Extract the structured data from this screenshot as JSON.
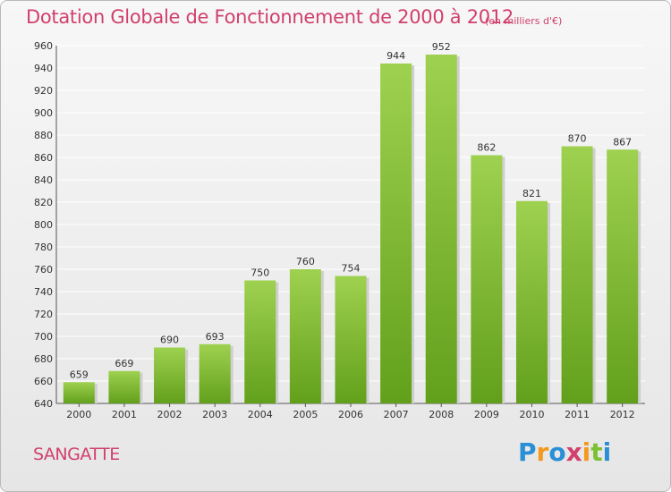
{
  "chart_data": {
    "type": "bar",
    "title": "Dotation Globale de Fonctionnement de 2000 à 2012",
    "subtitle": "(en milliers d'€)",
    "categories": [
      "2000",
      "2001",
      "2002",
      "2003",
      "2004",
      "2005",
      "2006",
      "2007",
      "2008",
      "2009",
      "2010",
      "2011",
      "2012"
    ],
    "values": [
      659,
      669,
      690,
      693,
      750,
      760,
      754,
      944,
      952,
      862,
      821,
      870,
      867
    ],
    "ylim": [
      640,
      960
    ],
    "yticks": [
      640,
      660,
      680,
      700,
      720,
      740,
      760,
      780,
      800,
      820,
      840,
      860,
      880,
      900,
      920,
      940,
      960
    ],
    "grid": true,
    "bar_color": "#7dc034",
    "xlabel": "",
    "ylabel": ""
  },
  "commune": "SANGATTE",
  "logo": {
    "letters": [
      "P",
      "r",
      "o",
      "x",
      "i",
      "t",
      "i"
    ],
    "colors": [
      "#2a8fd6",
      "#f29a1f",
      "#2a8fd6",
      "#d0406d",
      "#f29a1f",
      "#7dc034",
      "#2a8fd6"
    ]
  },
  "colors": {
    "title": "#d0406d",
    "grid": "#ffffff"
  }
}
